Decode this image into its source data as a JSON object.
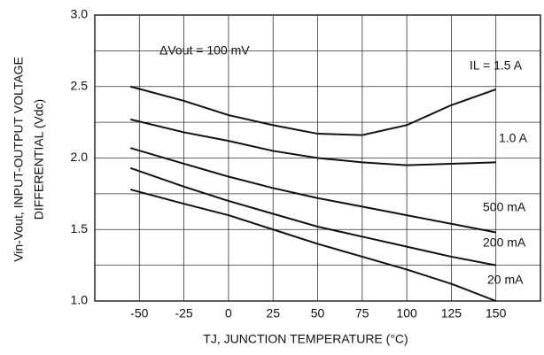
{
  "chart_data": {
    "type": "line",
    "annotation": "ΔVout = 100 mV",
    "x_label": "TJ, JUNCTION TEMPERATURE (°C)",
    "y_label": [
      "Vin-Vout, INPUT-OUTPUT VOLTAGE",
      "DIFFERENTIAL (Vdc)"
    ],
    "x": [
      -55,
      -25,
      0,
      25,
      50,
      75,
      100,
      125,
      150
    ],
    "series": [
      {
        "name": "IL = 1.5 A",
        "color": "#111111",
        "values": [
          2.5,
          2.4,
          2.3,
          2.23,
          2.17,
          2.16,
          2.23,
          2.37,
          2.48
        ]
      },
      {
        "name": "1.0 A",
        "color": "#111111",
        "values": [
          2.27,
          2.18,
          2.12,
          2.05,
          2.0,
          1.97,
          1.95,
          1.96,
          1.97
        ]
      },
      {
        "name": "500 mA",
        "color": "#111111",
        "values": [
          2.07,
          1.96,
          1.87,
          1.79,
          1.72,
          1.66,
          1.6,
          1.54,
          1.48
        ]
      },
      {
        "name": "200 mA",
        "color": "#111111",
        "values": [
          1.93,
          1.8,
          1.7,
          1.61,
          1.52,
          1.45,
          1.38,
          1.31,
          1.25
        ]
      },
      {
        "name": "20 mA",
        "color": "#111111",
        "values": [
          1.78,
          1.68,
          1.6,
          1.5,
          1.4,
          1.31,
          1.22,
          1.12,
          1.0
        ]
      }
    ],
    "xlim": [
      -75,
      175
    ],
    "ylim": [
      1.0,
      3.0
    ],
    "xticks": [
      -50,
      -25,
      0,
      25,
      50,
      75,
      100,
      125,
      150
    ],
    "yticks": [
      {
        "value": 1,
        "label": "1.0"
      },
      1.5,
      {
        "value": 2,
        "label": "2.0"
      },
      2.5,
      {
        "value": 3,
        "label": "3.0"
      }
    ],
    "y_minor_grid": [
      1.25,
      1.75,
      2.25,
      2.75
    ],
    "grid": true
  }
}
